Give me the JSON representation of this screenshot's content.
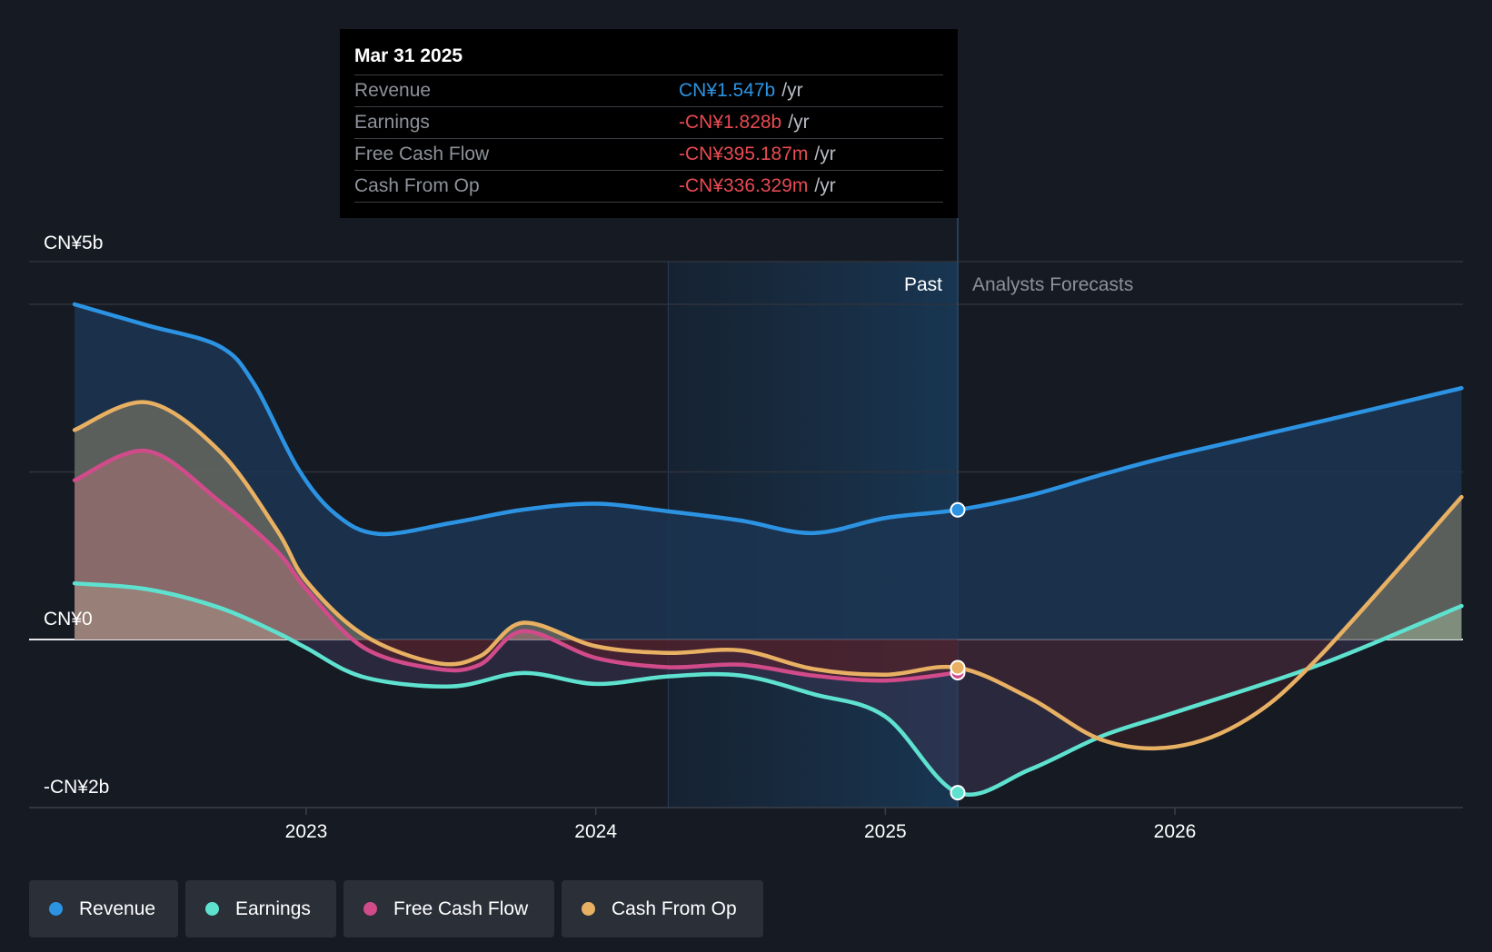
{
  "tooltip": {
    "date": "Mar 31 2025",
    "rows": [
      {
        "label": "Revenue",
        "value": "CN¥1.547b",
        "unit": "/yr",
        "color": "#2c93e3"
      },
      {
        "label": "Earnings",
        "value": "-CN¥1.828b",
        "unit": "/yr",
        "color": "#e84a52"
      },
      {
        "label": "Free Cash Flow",
        "value": "-CN¥395.187m",
        "unit": "/yr",
        "color": "#e84a52"
      },
      {
        "label": "Cash From Op",
        "value": "-CN¥336.329m",
        "unit": "/yr",
        "color": "#e84a52"
      }
    ]
  },
  "sections": {
    "past": "Past",
    "forecast": "Analysts Forecasts"
  },
  "legend": [
    {
      "label": "Revenue",
      "color": "#2c93e3"
    },
    {
      "label": "Earnings",
      "color": "#5ee2cf"
    },
    {
      "label": "Free Cash Flow",
      "color": "#d14b8b"
    },
    {
      "label": "Cash From Op",
      "color": "#e8b062"
    }
  ],
  "chart_data": {
    "type": "line",
    "title": "",
    "units": "CN¥ billions",
    "ylim": [
      -2.0,
      4.5
    ],
    "y_ticks": [
      {
        "value": 4.5,
        "label": "CN¥5b"
      },
      {
        "value": 0,
        "label": "CN¥0"
      },
      {
        "value": -2.0,
        "label": "-CN¥2b"
      }
    ],
    "x_ticks": [
      {
        "value": 2023.0,
        "label": "2023"
      },
      {
        "value": 2024.0,
        "label": "2024"
      },
      {
        "value": 2025.0,
        "label": "2025"
      },
      {
        "value": 2026.0,
        "label": "2026"
      }
    ],
    "x_range": [
      2022.2,
      2026.99
    ],
    "past_start": 2024.25,
    "divider": 2025.25,
    "marker_date": "Mar 31 2025",
    "series": [
      {
        "name": "Revenue",
        "color": "#2c93e3",
        "points": [
          [
            2022.2,
            4.0
          ],
          [
            2022.45,
            3.75
          ],
          [
            2022.7,
            3.5
          ],
          [
            2022.82,
            3.05
          ],
          [
            2022.97,
            2.05
          ],
          [
            2023.1,
            1.5
          ],
          [
            2023.25,
            1.26
          ],
          [
            2023.5,
            1.39
          ],
          [
            2023.75,
            1.55
          ],
          [
            2024.0,
            1.62
          ],
          [
            2024.25,
            1.53
          ],
          [
            2024.5,
            1.42
          ],
          [
            2024.75,
            1.27
          ],
          [
            2025.0,
            1.45
          ],
          [
            2025.25,
            1.547
          ],
          [
            2025.5,
            1.72
          ],
          [
            2025.75,
            1.97
          ],
          [
            2026.0,
            2.2
          ],
          [
            2026.5,
            2.6
          ],
          [
            2026.99,
            3.0
          ]
        ]
      },
      {
        "name": "Earnings",
        "color": "#5ee2cf",
        "points": [
          [
            2022.2,
            0.67
          ],
          [
            2022.45,
            0.6
          ],
          [
            2022.7,
            0.38
          ],
          [
            2022.9,
            0.08
          ],
          [
            2023.0,
            -0.1
          ],
          [
            2023.2,
            -0.45
          ],
          [
            2023.5,
            -0.56
          ],
          [
            2023.75,
            -0.4
          ],
          [
            2024.0,
            -0.53
          ],
          [
            2024.25,
            -0.44
          ],
          [
            2024.5,
            -0.43
          ],
          [
            2024.75,
            -0.65
          ],
          [
            2025.0,
            -0.92
          ],
          [
            2025.25,
            -1.828
          ],
          [
            2025.5,
            -1.55
          ],
          [
            2025.75,
            -1.15
          ],
          [
            2026.0,
            -0.87
          ],
          [
            2026.5,
            -0.3
          ],
          [
            2026.99,
            0.4
          ]
        ]
      },
      {
        "name": "Free Cash Flow",
        "color": "#d14b8b",
        "points": [
          [
            2022.2,
            1.9
          ],
          [
            2022.45,
            2.25
          ],
          [
            2022.7,
            1.65
          ],
          [
            2022.9,
            1.05
          ],
          [
            2023.0,
            0.6
          ],
          [
            2023.2,
            -0.1
          ],
          [
            2023.45,
            -0.35
          ],
          [
            2023.6,
            -0.3
          ],
          [
            2023.75,
            0.1
          ],
          [
            2024.0,
            -0.22
          ],
          [
            2024.25,
            -0.33
          ],
          [
            2024.5,
            -0.3
          ],
          [
            2024.75,
            -0.43
          ],
          [
            2025.0,
            -0.49
          ],
          [
            2025.25,
            -0.395
          ]
        ]
      },
      {
        "name": "Cash From Op",
        "color": "#e8b062",
        "points": [
          [
            2022.2,
            2.5
          ],
          [
            2022.45,
            2.83
          ],
          [
            2022.7,
            2.25
          ],
          [
            2022.9,
            1.3
          ],
          [
            2023.0,
            0.7
          ],
          [
            2023.2,
            0.05
          ],
          [
            2023.45,
            -0.28
          ],
          [
            2023.6,
            -0.2
          ],
          [
            2023.75,
            0.2
          ],
          [
            2024.0,
            -0.08
          ],
          [
            2024.25,
            -0.16
          ],
          [
            2024.5,
            -0.13
          ],
          [
            2024.75,
            -0.35
          ],
          [
            2025.0,
            -0.42
          ],
          [
            2025.25,
            -0.336
          ],
          [
            2025.5,
            -0.7
          ],
          [
            2025.75,
            -1.2
          ],
          [
            2026.0,
            -1.28
          ],
          [
            2026.25,
            -0.95
          ],
          [
            2026.5,
            -0.2
          ],
          [
            2026.99,
            1.7
          ]
        ]
      }
    ]
  }
}
